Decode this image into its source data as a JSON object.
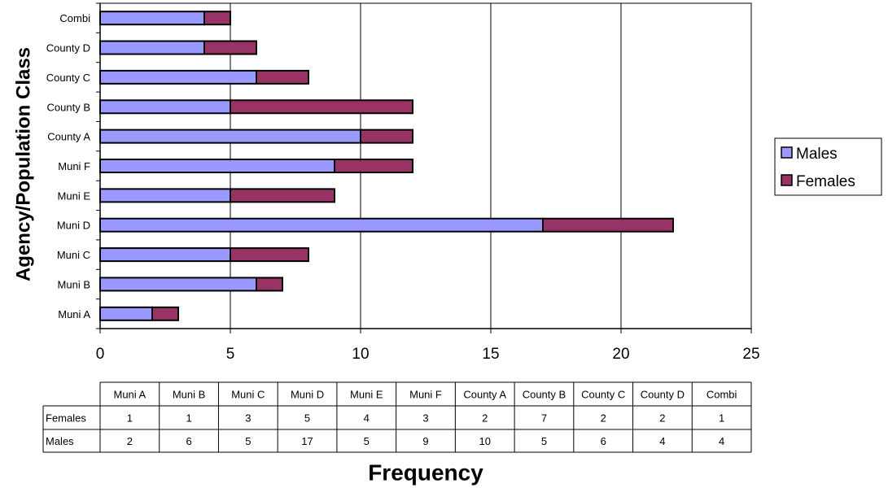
{
  "chart_data": {
    "type": "bar",
    "orientation": "horizontal",
    "stacked": true,
    "title": "",
    "xlabel": "Frequency",
    "ylabel": "Agency/Population Class",
    "xlim": [
      0,
      25
    ],
    "x_ticks": [
      0,
      5,
      10,
      15,
      20,
      25
    ],
    "grid": "vertical",
    "legend_position": "right",
    "categories": [
      "Muni A",
      "Muni B",
      "Muni C",
      "Muni D",
      "Muni E",
      "Muni F",
      "County A",
      "County B",
      "County C",
      "County D",
      "Combi"
    ],
    "series": [
      {
        "name": "Males",
        "color": "#9999ff",
        "values": [
          2,
          6,
          5,
          17,
          5,
          9,
          10,
          5,
          6,
          4,
          4
        ]
      },
      {
        "name": "Females",
        "color": "#993366",
        "values": [
          1,
          1,
          3,
          5,
          4,
          3,
          2,
          7,
          2,
          2,
          1
        ]
      }
    ],
    "data_table": {
      "row_order": [
        "Females",
        "Males"
      ]
    }
  }
}
